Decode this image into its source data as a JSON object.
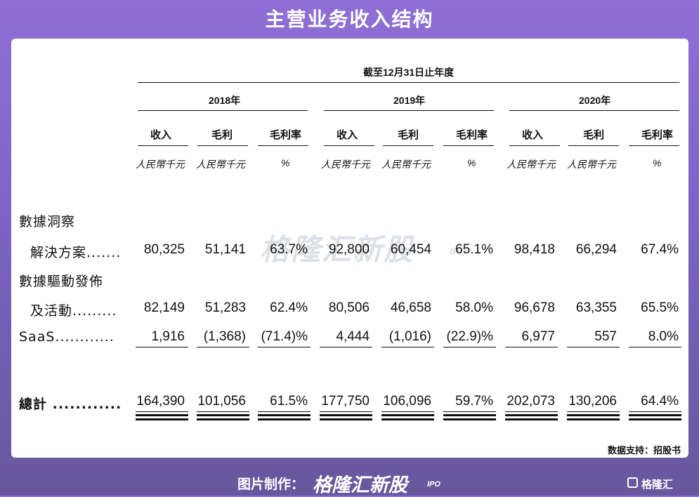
{
  "title": "主营业务收入结构",
  "watermark": {
    "brand": "格隆汇新股",
    "ipo": "IPO"
  },
  "table": {
    "period_header": "截至12月31日止年度",
    "years": [
      "2018年",
      "2019年",
      "2020年"
    ],
    "col_headers": [
      "收入",
      "毛利",
      "毛利率"
    ],
    "units": [
      "人民幣千元",
      "人民幣千元",
      "%"
    ],
    "rows": [
      {
        "label_lines": [
          "數據洞察",
          "解決方案......."
        ],
        "values": [
          "80,325",
          "51,141",
          "63.7%",
          "92,800",
          "60,454",
          "65.1%",
          "98,418",
          "66,294",
          "67.4%"
        ]
      },
      {
        "label_lines": [
          "數據驅動發佈",
          "及活動........."
        ],
        "values": [
          "82,149",
          "51,283",
          "62.4%",
          "80,506",
          "46,658",
          "58.0%",
          "96,678",
          "63,355",
          "65.5%"
        ]
      },
      {
        "label_lines": [
          "SaaS............"
        ],
        "values": [
          "1,916",
          "(1,368)",
          "(71.4)%",
          "4,444",
          "(1,016)",
          "(22.9)%",
          "6,977",
          "557",
          "8.0%"
        ]
      }
    ],
    "total": {
      "label": "總計 ............",
      "values": [
        "164,390",
        "101,056",
        "61.5%",
        "177,750",
        "106,096",
        "59.7%",
        "202,073",
        "130,206",
        "64.4%"
      ]
    }
  },
  "source": "数据支持：招股书",
  "footer": {
    "prefix": "图片制作：",
    "brand": "格隆汇新股",
    "ipo": "IPO"
  },
  "corner_logo": "格隆汇"
}
